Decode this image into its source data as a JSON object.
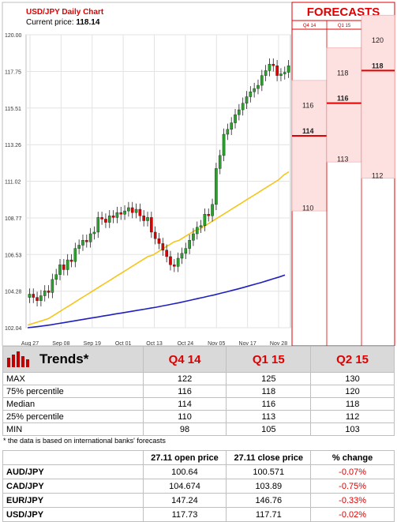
{
  "chart_data": {
    "type": "candlestick",
    "title": "USD/JPY Daily Chart",
    "current_price_label": "Current price:",
    "current_price": "118.14",
    "y_ticks": [
      "120.00",
      "117.75",
      "115.51",
      "113.26",
      "111.02",
      "108.77",
      "106.53",
      "104.28",
      "102.04"
    ],
    "y_values": [
      120.0,
      117.75,
      115.51,
      113.26,
      111.02,
      108.77,
      106.53,
      104.28,
      102.04
    ],
    "ylim": [
      102.04,
      120.0
    ],
    "x_ticks": [
      "Aug 27",
      "Sep 08",
      "Sep 19",
      "Oct 01",
      "Oct 13",
      "Oct 24",
      "Nov 05",
      "Nov 17",
      "Nov 28"
    ],
    "closes": [
      104.1,
      103.9,
      103.7,
      104.0,
      104.3,
      104.2,
      105.0,
      105.3,
      105.9,
      105.6,
      106.2,
      106.1,
      106.9,
      107.1,
      107.4,
      107.3,
      107.8,
      107.9,
      108.8,
      108.7,
      108.5,
      108.9,
      108.8,
      109.1,
      109.0,
      109.2,
      109.4,
      109.1,
      109.3,
      108.9,
      108.6,
      108.8,
      107.9,
      107.5,
      107.2,
      106.8,
      106.4,
      105.9,
      105.8,
      106.3,
      106.6,
      106.9,
      107.4,
      107.8,
      108.2,
      108.3,
      109.0,
      108.9,
      109.6,
      111.8,
      112.6,
      113.9,
      114.2,
      114.6,
      115.1,
      115.4,
      115.8,
      116.2,
      116.5,
      116.7,
      116.9,
      117.5,
      117.8,
      118.2,
      118.1,
      117.5,
      117.6,
      117.7,
      118.1
    ],
    "ma_yellow": [
      102.2,
      102.3,
      102.4,
      102.5,
      102.6,
      102.8,
      103.0,
      103.2,
      103.4,
      103.6,
      103.8,
      104.0,
      104.2,
      104.4,
      104.6,
      104.8,
      105.0,
      105.2,
      105.4,
      105.6,
      105.8,
      106.0,
      106.2,
      106.4,
      106.5,
      106.7,
      106.9,
      107.1,
      107.3,
      107.4,
      107.6,
      107.8,
      108.0,
      108.1,
      108.3,
      108.5,
      108.7,
      108.9,
      109.1,
      109.3,
      109.5,
      109.7,
      109.9,
      110.1,
      110.3,
      110.5,
      110.7,
      110.9,
      111.1,
      111.4,
      111.6
    ],
    "ma_blue": [
      102.04,
      102.08,
      102.12,
      102.17,
      102.22,
      102.28,
      102.34,
      102.4,
      102.46,
      102.52,
      102.58,
      102.64,
      102.7,
      102.76,
      102.82,
      102.88,
      102.94,
      103.0,
      103.06,
      103.12,
      103.18,
      103.24,
      103.3,
      103.37,
      103.44,
      103.51,
      103.58,
      103.66,
      103.74,
      103.82,
      103.9,
      103.98,
      104.06,
      104.15,
      104.24,
      104.33,
      104.42,
      104.52,
      104.62,
      104.72,
      104.82,
      104.93,
      105.04,
      105.15,
      105.27
    ],
    "forecasts": {
      "title": "FORECASTS",
      "columns": [
        {
          "label": "Q4 14",
          "min": 110,
          "p25": 110,
          "median": 114,
          "p75": 116
        },
        {
          "label": "Q1 15",
          "min": 113,
          "p25": 113,
          "median": 116,
          "p75": 118
        },
        {
          "label": "Q2 15",
          "min": 112,
          "p25": 112,
          "median": 118,
          "p75": 120
        }
      ],
      "labels": [
        [
          "116",
          "114",
          "110"
        ],
        [
          "118",
          "116",
          "113"
        ],
        [
          "120",
          "118",
          "112"
        ]
      ]
    }
  },
  "colors": {
    "up": "#2ca02c",
    "down": "#e00000",
    "ma_yellow": "#f5c518",
    "ma_blue": "#1f1fbf",
    "forecast_fill": "#fde0e0",
    "forecast_line": "#e00000"
  },
  "trends": {
    "title": "Trends*",
    "icon": "bar-chart-icon",
    "quarters": [
      "Q4 14",
      "Q1 15",
      "Q2 15"
    ],
    "rows": [
      {
        "label": "MAX",
        "values": [
          "122",
          "125",
          "130"
        ]
      },
      {
        "label": "75% percentile",
        "values": [
          "116",
          "118",
          "120"
        ]
      },
      {
        "label": "Median",
        "values": [
          "114",
          "116",
          "118"
        ]
      },
      {
        "label": "25% percentile",
        "values": [
          "110",
          "113",
          "112"
        ]
      },
      {
        "label": "MIN",
        "values": [
          "98",
          "105",
          "103"
        ]
      }
    ],
    "note": "* the data is based on international banks' forecasts"
  },
  "prices": {
    "headers": [
      "",
      "27.11 open price",
      "27.11 close price",
      "% change"
    ],
    "rows": [
      {
        "pair": "AUD/JPY",
        "open": "100.64",
        "close": "100.571",
        "change": "-0.07%"
      },
      {
        "pair": "CAD/JPY",
        "open": "104.674",
        "close": "103.89",
        "change": "-0.75%"
      },
      {
        "pair": "EUR/JPY",
        "open": "147.24",
        "close": "146.76",
        "change": "-0.33%"
      },
      {
        "pair": "USD/JPY",
        "open": "117.73",
        "close": "117.71",
        "change": "-0.02%"
      }
    ]
  }
}
